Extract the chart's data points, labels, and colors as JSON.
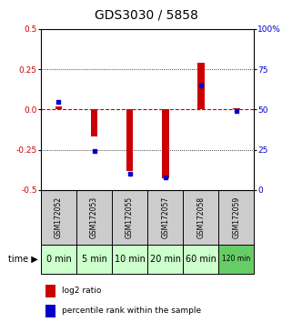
{
  "title": "GDS3030 / 5858",
  "samples": [
    "GSM172052",
    "GSM172053",
    "GSM172055",
    "GSM172057",
    "GSM172058",
    "GSM172059"
  ],
  "time_labels": [
    "0 min",
    "5 min",
    "10 min",
    "20 min",
    "60 min",
    "120 min"
  ],
  "log2_ratio": [
    0.02,
    -0.17,
    -0.38,
    -0.43,
    0.29,
    0.01
  ],
  "percentile_rank": [
    55,
    24,
    10,
    8,
    65,
    49
  ],
  "ylim_left": [
    -0.5,
    0.5
  ],
  "ylim_right": [
    0,
    100
  ],
  "yticks_left": [
    -0.5,
    -0.25,
    0.0,
    0.25,
    0.5
  ],
  "yticks_right": [
    0,
    25,
    50,
    75,
    100
  ],
  "bar_color": "#cc0000",
  "dot_color": "#0000cc",
  "zero_line_color": "#cc0000",
  "grid_color": "#000000",
  "bg_color": "#ffffff",
  "plot_bg": "#ffffff",
  "sample_bg": "#cccccc",
  "time_bg_light": "#ccffcc",
  "time_bg_dark": "#66cc66",
  "title_fontsize": 10,
  "tick_fontsize": 6.5,
  "legend_fontsize": 6.5
}
